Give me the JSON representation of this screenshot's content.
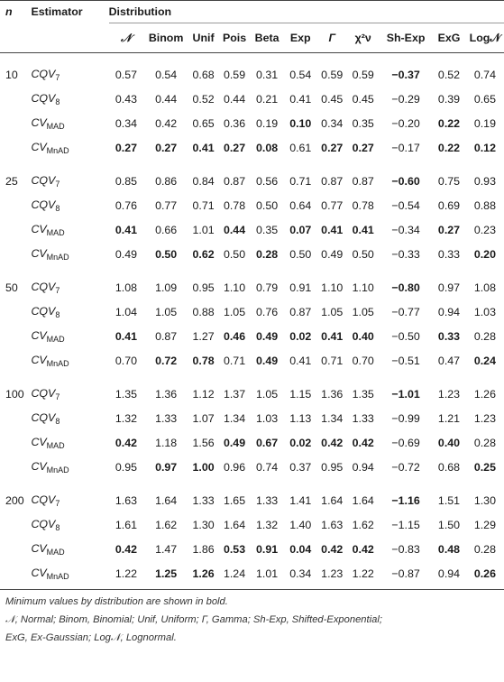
{
  "header": {
    "n_label": "n",
    "estimator_label": "Estimator",
    "distribution_label": "Distribution",
    "columns": [
      "𝒩",
      "Binom",
      "Unif",
      "Pois",
      "Beta",
      "Exp",
      "Γ",
      "χ²ν",
      "Sh-Exp",
      "ExG",
      "Log𝒩"
    ]
  },
  "groups": [
    {
      "n": "10",
      "rows": [
        {
          "est": "CQV",
          "sub": "7",
          "vals": [
            "0.57",
            "0.54",
            "0.68",
            "0.59",
            "0.31",
            "0.54",
            "0.59",
            "0.59",
            "−0.37",
            "0.52",
            "0.74"
          ],
          "bold": [
            8
          ]
        },
        {
          "est": "CQV",
          "sub": "8",
          "vals": [
            "0.43",
            "0.44",
            "0.52",
            "0.44",
            "0.21",
            "0.41",
            "0.45",
            "0.45",
            "−0.29",
            "0.39",
            "0.65"
          ],
          "bold": []
        },
        {
          "est": "CV",
          "sub": "MAD",
          "vals": [
            "0.34",
            "0.42",
            "0.65",
            "0.36",
            "0.19",
            "0.10",
            "0.34",
            "0.35",
            "−0.20",
            "0.22",
            "0.19"
          ],
          "bold": [
            5,
            9
          ]
        },
        {
          "est": "CV",
          "sub": "MnAD",
          "vals": [
            "0.27",
            "0.27",
            "0.41",
            "0.27",
            "0.08",
            "0.61",
            "0.27",
            "0.27",
            "−0.17",
            "0.22",
            "0.12"
          ],
          "bold": [
            0,
            1,
            2,
            3,
            4,
            6,
            7,
            9,
            10
          ]
        }
      ]
    },
    {
      "n": "25",
      "rows": [
        {
          "est": "CQV",
          "sub": "7",
          "vals": [
            "0.85",
            "0.86",
            "0.84",
            "0.87",
            "0.56",
            "0.71",
            "0.87",
            "0.87",
            "−0.60",
            "0.75",
            "0.93"
          ],
          "bold": [
            8
          ]
        },
        {
          "est": "CQV",
          "sub": "8",
          "vals": [
            "0.76",
            "0.77",
            "0.71",
            "0.78",
            "0.50",
            "0.64",
            "0.77",
            "0.78",
            "−0.54",
            "0.69",
            "0.88"
          ],
          "bold": []
        },
        {
          "est": "CV",
          "sub": "MAD",
          "vals": [
            "0.41",
            "0.66",
            "1.01",
            "0.44",
            "0.35",
            "0.07",
            "0.41",
            "0.41",
            "−0.34",
            "0.27",
            "0.23"
          ],
          "bold": [
            0,
            3,
            5,
            6,
            7,
            9
          ]
        },
        {
          "est": "CV",
          "sub": "MnAD",
          "vals": [
            "0.49",
            "0.50",
            "0.62",
            "0.50",
            "0.28",
            "0.50",
            "0.49",
            "0.50",
            "−0.33",
            "0.33",
            "0.20"
          ],
          "bold": [
            1,
            2,
            4,
            10
          ]
        }
      ]
    },
    {
      "n": "50",
      "rows": [
        {
          "est": "CQV",
          "sub": "7",
          "vals": [
            "1.08",
            "1.09",
            "0.95",
            "1.10",
            "0.79",
            "0.91",
            "1.10",
            "1.10",
            "−0.80",
            "0.97",
            "1.08"
          ],
          "bold": [
            8
          ]
        },
        {
          "est": "CQV",
          "sub": "8",
          "vals": [
            "1.04",
            "1.05",
            "0.88",
            "1.05",
            "0.76",
            "0.87",
            "1.05",
            "1.05",
            "−0.77",
            "0.94",
            "1.03"
          ],
          "bold": []
        },
        {
          "est": "CV",
          "sub": "MAD",
          "vals": [
            "0.41",
            "0.87",
            "1.27",
            "0.46",
            "0.49",
            "0.02",
            "0.41",
            "0.40",
            "−0.50",
            "0.33",
            "0.28"
          ],
          "bold": [
            0,
            3,
            4,
            5,
            6,
            7,
            9
          ]
        },
        {
          "est": "CV",
          "sub": "MnAD",
          "vals": [
            "0.70",
            "0.72",
            "0.78",
            "0.71",
            "0.49",
            "0.41",
            "0.71",
            "0.70",
            "−0.51",
            "0.47",
            "0.24"
          ],
          "bold": [
            1,
            2,
            4,
            10
          ]
        }
      ]
    },
    {
      "n": "100",
      "rows": [
        {
          "est": "CQV",
          "sub": "7",
          "vals": [
            "1.35",
            "1.36",
            "1.12",
            "1.37",
            "1.05",
            "1.15",
            "1.36",
            "1.35",
            "−1.01",
            "1.23",
            "1.26"
          ],
          "bold": [
            8
          ]
        },
        {
          "est": "CQV",
          "sub": "8",
          "vals": [
            "1.32",
            "1.33",
            "1.07",
            "1.34",
            "1.03",
            "1.13",
            "1.34",
            "1.33",
            "−0.99",
            "1.21",
            "1.23"
          ],
          "bold": []
        },
        {
          "est": "CV",
          "sub": "MAD",
          "vals": [
            "0.42",
            "1.18",
            "1.56",
            "0.49",
            "0.67",
            "0.02",
            "0.42",
            "0.42",
            "−0.69",
            "0.40",
            "0.28"
          ],
          "bold": [
            0,
            3,
            4,
            5,
            6,
            7,
            9
          ]
        },
        {
          "est": "CV",
          "sub": "MnAD",
          "vals": [
            "0.95",
            "0.97",
            "1.00",
            "0.96",
            "0.74",
            "0.37",
            "0.95",
            "0.94",
            "−0.72",
            "0.68",
            "0.25"
          ],
          "bold": [
            1,
            2,
            10
          ]
        }
      ]
    },
    {
      "n": "200",
      "rows": [
        {
          "est": "CQV",
          "sub": "7",
          "vals": [
            "1.63",
            "1.64",
            "1.33",
            "1.65",
            "1.33",
            "1.41",
            "1.64",
            "1.64",
            "−1.16",
            "1.51",
            "1.30"
          ],
          "bold": [
            8
          ]
        },
        {
          "est": "CQV",
          "sub": "8",
          "vals": [
            "1.61",
            "1.62",
            "1.30",
            "1.64",
            "1.32",
            "1.40",
            "1.63",
            "1.62",
            "−1.15",
            "1.50",
            "1.29"
          ],
          "bold": []
        },
        {
          "est": "CV",
          "sub": "MAD",
          "vals": [
            "0.42",
            "1.47",
            "1.86",
            "0.53",
            "0.91",
            "0.04",
            "0.42",
            "0.42",
            "−0.83",
            "0.48",
            "0.28"
          ],
          "bold": [
            0,
            3,
            4,
            5,
            6,
            7,
            9
          ]
        },
        {
          "est": "CV",
          "sub": "MnAD",
          "vals": [
            "1.22",
            "1.25",
            "1.26",
            "1.24",
            "1.01",
            "0.34",
            "1.23",
            "1.22",
            "−0.87",
            "0.94",
            "0.26"
          ],
          "bold": [
            1,
            2,
            10
          ]
        }
      ]
    }
  ],
  "footnotes": {
    "line1": "Minimum values by distribution are shown in bold.",
    "line2": "𝒩, Normal; Binom, Binomial; Unif, Uniform; Γ, Gamma; Sh-Exp, Shifted-Exponential;",
    "line3": "ExG, Ex-Gaussian; Log𝒩, Lognormal."
  }
}
